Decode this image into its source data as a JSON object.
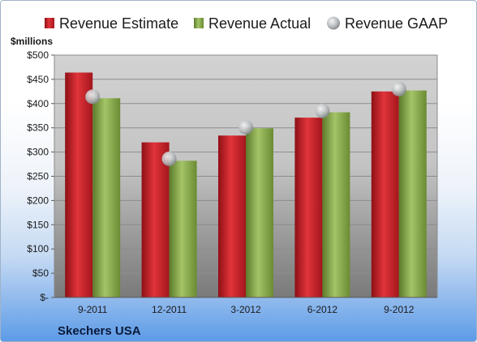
{
  "chart_data": {
    "type": "bar",
    "company": "Skechers USA",
    "ylabel": "$millions",
    "categories": [
      "9-2011",
      "12-2011",
      "3-2012",
      "6-2012",
      "9-2012"
    ],
    "series": [
      {
        "name": "Revenue Estimate",
        "type": "bar",
        "color": "#cc2229",
        "values": [
          464,
          320,
          334,
          371,
          425
        ]
      },
      {
        "name": "Revenue Actual",
        "type": "bar",
        "color": "#8aac4c",
        "values": [
          411,
          282,
          349,
          382,
          427
        ]
      },
      {
        "name": "Revenue GAAP",
        "type": "marker",
        "color": "#b8bcc0",
        "values": [
          414,
          286,
          351,
          385,
          430
        ]
      }
    ],
    "ylim": [
      0,
      500
    ],
    "yticks": [
      0,
      50,
      100,
      150,
      200,
      250,
      300,
      350,
      400,
      450,
      500
    ],
    "ytick_labels": [
      "$-",
      "$50",
      "$100",
      "$150",
      "$200",
      "$250",
      "$300",
      "$350",
      "$400",
      "$450",
      "$500"
    ],
    "grid": true,
    "legend_position": "top"
  }
}
